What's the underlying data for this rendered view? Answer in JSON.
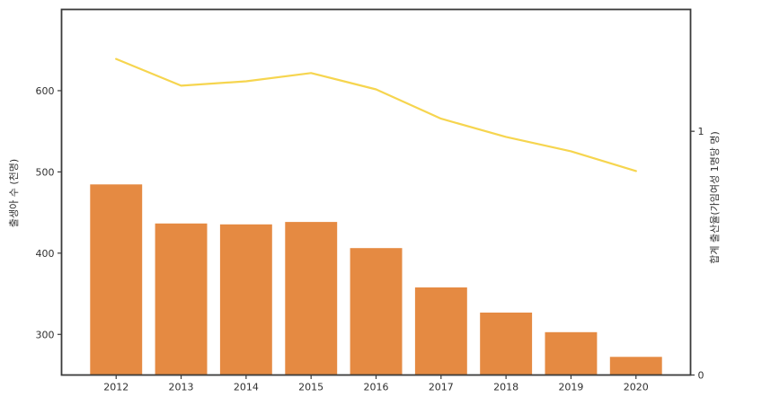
{
  "chart_data": {
    "type": "combo-bar-line",
    "title": "",
    "categories": [
      "2012",
      "2013",
      "2014",
      "2015",
      "2016",
      "2017",
      "2018",
      "2019",
      "2020"
    ],
    "series": [
      {
        "name": "출생아 수 (천명)",
        "type": "bar",
        "yaxis": "left",
        "color": "#e58a42",
        "values": [
          484.6,
          436.5,
          435.4,
          438.4,
          406.2,
          357.8,
          326.8,
          302.7,
          272.3
        ]
      },
      {
        "name": "합계 출산율(가임여성 1명당 명)",
        "type": "line",
        "yaxis": "right",
        "color": "#f6d54f",
        "values": [
          1.297,
          1.187,
          1.205,
          1.239,
          1.172,
          1.052,
          0.977,
          0.918,
          0.837
        ]
      }
    ],
    "axes": {
      "left": {
        "label": "출생아 수 (천명)",
        "tick_labels": [
          "300",
          "400",
          "500",
          "600"
        ],
        "tick_values": [
          300,
          400,
          500,
          600
        ],
        "ylim": [
          250,
          700
        ]
      },
      "right": {
        "label": "합계 출산율(가임여성 1명당 명)",
        "tick_labels": [
          "0",
          "1"
        ],
        "tick_values": [
          0,
          1
        ],
        "ylim": [
          0,
          1.5
        ]
      },
      "x": {
        "tick_labels": [
          "2012",
          "2013",
          "2014",
          "2015",
          "2016",
          "2017",
          "2018",
          "2019",
          "2020"
        ]
      }
    },
    "grid": false,
    "legend": "none",
    "colors": {
      "frame": "#3a3a3a",
      "text": "#303030",
      "background": "#ffffff"
    }
  }
}
